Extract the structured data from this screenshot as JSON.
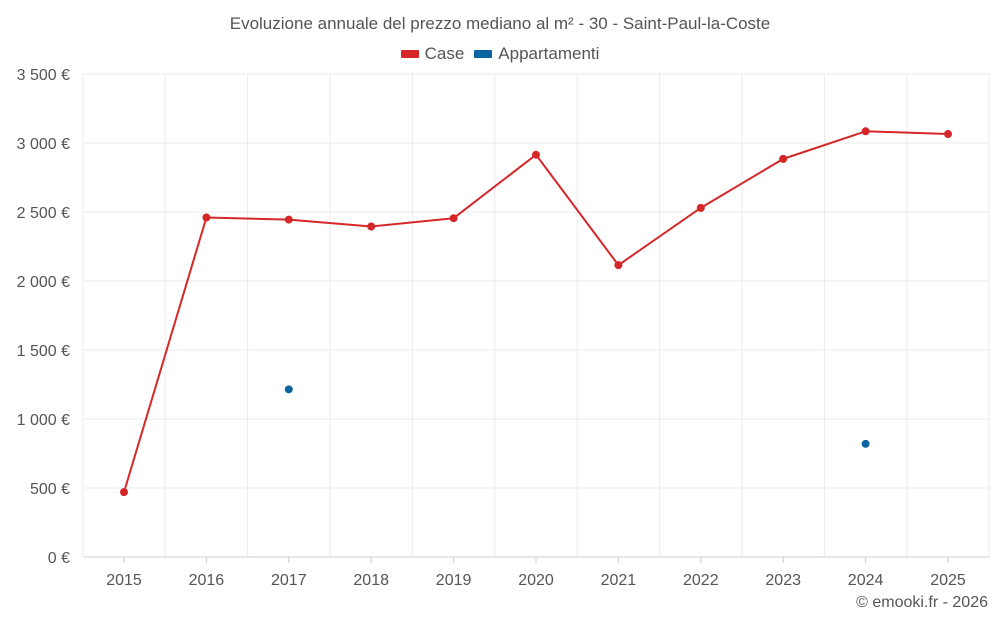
{
  "chart_data": {
    "type": "line",
    "title": "Evoluzione annuale del prezzo mediano al m² - 30 - Saint-Paul-la-Coste",
    "categories": [
      "2015",
      "2016",
      "2017",
      "2018",
      "2019",
      "2020",
      "2021",
      "2022",
      "2023",
      "2024",
      "2025"
    ],
    "series": [
      {
        "name": "Case",
        "color": "#d62728",
        "connected": true,
        "values": [
          470,
          2460,
          2445,
          2395,
          2455,
          2915,
          2115,
          2530,
          2885,
          3085,
          3065
        ]
      },
      {
        "name": "Appartamenti",
        "color": "#0b63a0",
        "connected": false,
        "values": [
          null,
          null,
          1215,
          null,
          null,
          null,
          null,
          null,
          null,
          820,
          null
        ]
      }
    ],
    "ylim": [
      0,
      3500
    ],
    "yticks": [
      0,
      500,
      1000,
      1500,
      2000,
      2500,
      3000,
      3500
    ],
    "ytick_labels": [
      "0 €",
      "500 €",
      "1 000 €",
      "1 500 €",
      "2 000 €",
      "2 500 €",
      "3 000 €",
      "3 500 €"
    ],
    "grid": true,
    "legend_position": "top-center"
  },
  "credit": "© emooki.fr - 2026"
}
